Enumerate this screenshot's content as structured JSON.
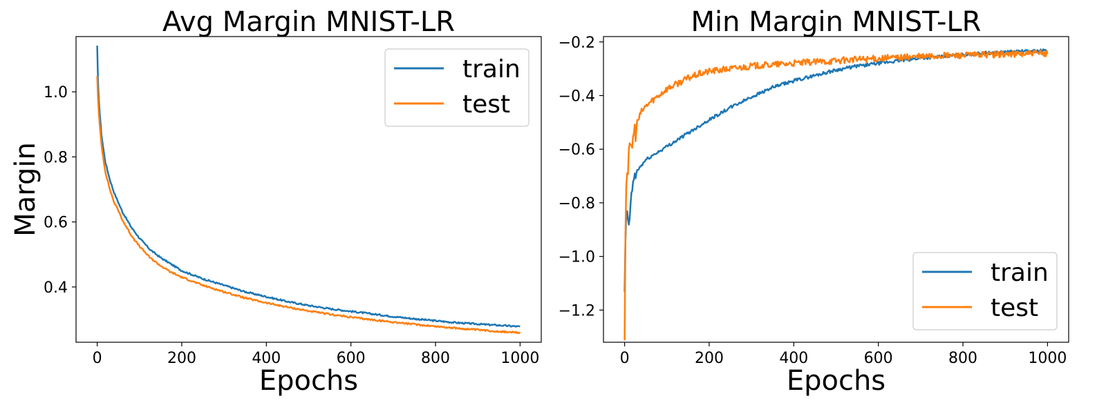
{
  "colors": {
    "train": "#1f77b4",
    "test": "#ff7f0e"
  },
  "chart_data": [
    {
      "type": "line",
      "title": "Avg Margin MNIST-LR",
      "xlabel": "Epochs",
      "ylabel": "Margin",
      "xlim": [
        -50,
        1050
      ],
      "ylim": [
        0.23,
        1.17
      ],
      "x_ticks": [
        0,
        200,
        400,
        600,
        800,
        1000
      ],
      "x_tick_labels": [
        "0",
        "200",
        "400",
        "600",
        "800",
        "1000"
      ],
      "y_ticks": [
        0.4,
        0.6,
        0.8,
        1.0
      ],
      "y_tick_labels": [
        "0.4",
        "0.6",
        "0.8",
        "1.0"
      ],
      "legend": {
        "position": "top-right",
        "entries": [
          "train",
          "test"
        ]
      },
      "series": [
        {
          "name": "train",
          "color": "#1f77b4",
          "x": [
            0,
            2,
            5,
            10,
            15,
            20,
            30,
            40,
            50,
            60,
            80,
            100,
            125,
            150,
            175,
            200,
            250,
            300,
            350,
            400,
            450,
            500,
            550,
            600,
            650,
            700,
            750,
            800,
            850,
            900,
            950,
            1000
          ],
          "y": [
            1.14,
            1.03,
            0.95,
            0.87,
            0.82,
            0.78,
            0.73,
            0.69,
            0.66,
            0.63,
            0.585,
            0.55,
            0.515,
            0.49,
            0.47,
            0.45,
            0.425,
            0.405,
            0.385,
            0.37,
            0.355,
            0.343,
            0.333,
            0.325,
            0.317,
            0.309,
            0.302,
            0.296,
            0.29,
            0.286,
            0.282,
            0.278
          ]
        },
        {
          "name": "test",
          "color": "#ff7f0e",
          "x": [
            0,
            2,
            5,
            10,
            15,
            20,
            30,
            40,
            50,
            60,
            80,
            100,
            125,
            150,
            175,
            200,
            250,
            300,
            350,
            400,
            450,
            500,
            550,
            600,
            650,
            700,
            750,
            800,
            850,
            900,
            950,
            1000
          ],
          "y": [
            1.05,
            0.98,
            0.91,
            0.84,
            0.79,
            0.75,
            0.7,
            0.66,
            0.635,
            0.605,
            0.56,
            0.525,
            0.49,
            0.465,
            0.445,
            0.43,
            0.405,
            0.385,
            0.366,
            0.351,
            0.338,
            0.326,
            0.316,
            0.307,
            0.299,
            0.292,
            0.285,
            0.279,
            0.273,
            0.268,
            0.263,
            0.259
          ]
        }
      ]
    },
    {
      "type": "line",
      "title": "Min Margin MNIST-LR",
      "xlabel": "Epochs",
      "ylabel": "",
      "xlim": [
        -50,
        1050
      ],
      "ylim": [
        -1.32,
        -0.18
      ],
      "x_ticks": [
        0,
        200,
        400,
        600,
        800,
        1000
      ],
      "x_tick_labels": [
        "0",
        "200",
        "400",
        "600",
        "800",
        "1000"
      ],
      "y_ticks": [
        -1.2,
        -1.0,
        -0.8,
        -0.6,
        -0.4,
        -0.2
      ],
      "y_tick_labels": [
        "−1.2",
        "−1.0",
        "−0.8",
        "−0.6",
        "−0.4",
        "−0.2"
      ],
      "legend": {
        "position": "bottom-right",
        "entries": [
          "train",
          "test"
        ]
      },
      "series": [
        {
          "name": "train",
          "color": "#1f77b4",
          "x": [
            0,
            3,
            6,
            10,
            15,
            20,
            30,
            40,
            50,
            60,
            80,
            100,
            125,
            150,
            175,
            200,
            250,
            300,
            350,
            400,
            450,
            500,
            550,
            600,
            650,
            700,
            750,
            800,
            850,
            900,
            950,
            1000
          ],
          "y": [
            -1.15,
            -0.84,
            -0.85,
            -0.88,
            -0.8,
            -0.72,
            -0.68,
            -0.66,
            -0.64,
            -0.63,
            -0.61,
            -0.59,
            -0.565,
            -0.54,
            -0.515,
            -0.49,
            -0.445,
            -0.405,
            -0.37,
            -0.345,
            -0.325,
            -0.305,
            -0.29,
            -0.28,
            -0.27,
            -0.26,
            -0.255,
            -0.248,
            -0.242,
            -0.238,
            -0.235,
            -0.232
          ]
        },
        {
          "name": "test",
          "color": "#ff7f0e",
          "x": [
            0,
            3,
            6,
            10,
            15,
            20,
            30,
            40,
            50,
            60,
            80,
            100,
            125,
            150,
            175,
            200,
            250,
            300,
            350,
            400,
            450,
            500,
            550,
            600,
            650,
            700,
            750,
            800,
            850,
            900,
            950,
            1000
          ],
          "y": [
            -1.28,
            -0.72,
            -0.68,
            -0.64,
            -0.6,
            -0.56,
            -0.5,
            -0.46,
            -0.44,
            -0.425,
            -0.4,
            -0.375,
            -0.355,
            -0.335,
            -0.32,
            -0.31,
            -0.3,
            -0.29,
            -0.285,
            -0.28,
            -0.275,
            -0.27,
            -0.265,
            -0.262,
            -0.258,
            -0.255,
            -0.252,
            -0.25,
            -0.248,
            -0.246,
            -0.244,
            -0.243
          ]
        }
      ]
    }
  ]
}
